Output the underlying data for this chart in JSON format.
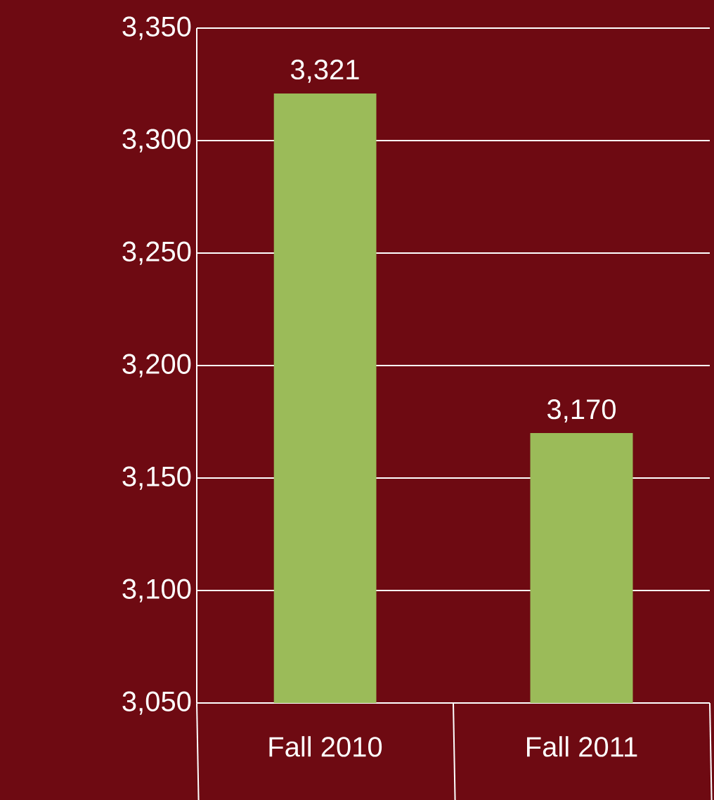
{
  "chart_data": {
    "type": "bar",
    "categories": [
      "Fall 2010",
      "Fall 2011"
    ],
    "values": [
      3321,
      3170
    ],
    "color": "#9bbb59",
    "value_labels": [
      "3,321",
      "3,170"
    ],
    "ylim": [
      3050,
      3350
    ],
    "yticks": [
      {
        "value": 3050,
        "label": "3,050"
      },
      {
        "value": 3100,
        "label": "3,100"
      },
      {
        "value": 3150,
        "label": "3,150"
      },
      {
        "value": 3200,
        "label": "3,200"
      },
      {
        "value": 3250,
        "label": "3,250"
      },
      {
        "value": 3300,
        "label": "3,300"
      },
      {
        "value": 3350,
        "label": "3,350"
      }
    ],
    "grid": "y"
  }
}
